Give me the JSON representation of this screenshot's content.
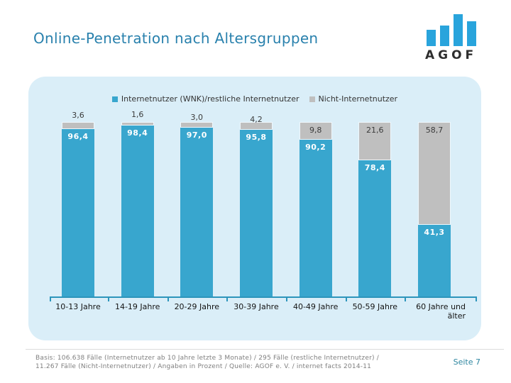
{
  "slide": {
    "title": "Online-Penetration nach Altersgruppen",
    "logo_text": "AGOF",
    "page_label": "Seite 7"
  },
  "footer": {
    "line1": "Basis: 106.638 Fälle (Internetnutzer ab 10 Jahre letzte 3 Monate) / 295 Fälle (restliche Internetnutzer) /",
    "line2": "11.267 Fälle (Nicht-Internetnutzer) / Angaben in Prozent / Quelle: AGOF e. V. / internet facts 2014-11"
  },
  "colors": {
    "bar_teal": "#38a6ce",
    "bar_gray": "#bfbfbf",
    "panel_background": "#daeef8",
    "axis": "#2c95bb",
    "title": "#2981ad",
    "page_label": "#2e86a0",
    "logo_blue": "#29a4dc",
    "footer_text": "#7f7f7f"
  },
  "chart_data": {
    "type": "bar",
    "stacked": true,
    "stacked_total": 100,
    "unit": "percent",
    "decimal_separator": ",",
    "grid": false,
    "legend_position": "top",
    "top_segment_series_index": 1,
    "categories": [
      "10-13 Jahre",
      "14-19 Jahre",
      "20-29 Jahre",
      "30-39 Jahre",
      "40-49 Jahre",
      "50-59 Jahre",
      "60 Jahre und älter"
    ],
    "series": [
      {
        "name": "Internetnutzer (WNK)/restliche Internetnutzer",
        "color": "#38a6ce",
        "values": [
          96.4,
          98.4,
          97.0,
          95.8,
          90.2,
          78.4,
          41.3
        ]
      },
      {
        "name": "Nicht-Internetnutzer",
        "color": "#bfbfbf",
        "values": [
          3.6,
          1.6,
          3.0,
          4.2,
          9.8,
          21.6,
          58.7
        ]
      }
    ]
  }
}
